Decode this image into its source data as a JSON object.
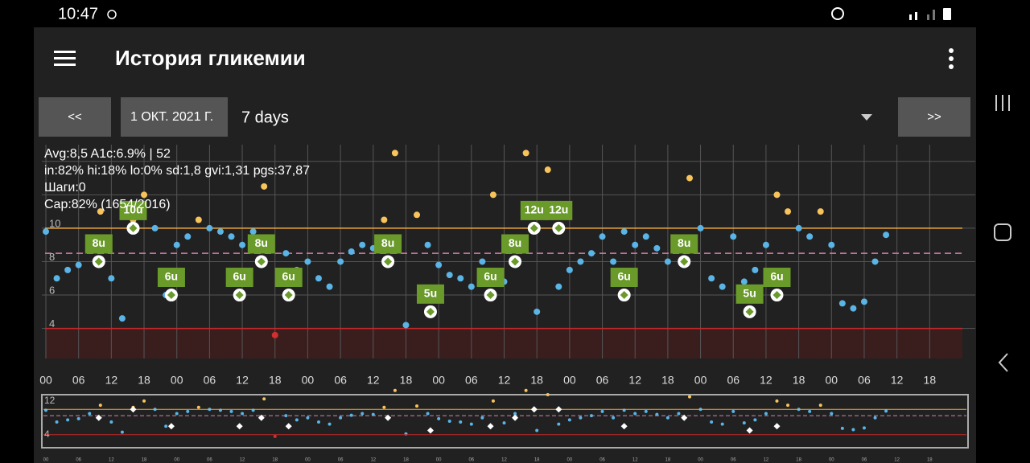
{
  "status": {
    "time": "10:47"
  },
  "app_bar": {
    "title": "История гликемии"
  },
  "controls": {
    "prev": "<<",
    "date": "1 ОКТ. 2021 Г.",
    "range": "7 days",
    "next": ">>"
  },
  "stats": [
    "Avg:8,5 A1c:6.9% | 52",
    "in:82% hi:18% lo:0% sd:1,8 gvi:1,31 pgs:37,87",
    "Шаги:0",
    "Cap:82% (1654/2016)"
  ],
  "chart_data": {
    "type": "scatter",
    "xlim": [
      0,
      168
    ],
    "ylim": [
      2.2,
      15
    ],
    "yticks": [
      4,
      6,
      8,
      10
    ],
    "grid_y": [
      4,
      6,
      8,
      10,
      12,
      14
    ],
    "xticks": [
      {
        "value": 0,
        "label": "00"
      },
      {
        "value": 6,
        "label": "06"
      },
      {
        "value": 12,
        "label": "12"
      },
      {
        "value": 18,
        "label": "18"
      },
      {
        "value": 24,
        "label": "00"
      },
      {
        "value": 30,
        "label": "06"
      },
      {
        "value": 36,
        "label": "12"
      },
      {
        "value": 42,
        "label": "18"
      },
      {
        "value": 48,
        "label": "00"
      },
      {
        "value": 54,
        "label": "06"
      },
      {
        "value": 60,
        "label": "12"
      },
      {
        "value": 66,
        "label": "18"
      },
      {
        "value": 72,
        "label": "00"
      },
      {
        "value": 78,
        "label": "06"
      },
      {
        "value": 84,
        "label": "12"
      },
      {
        "value": 90,
        "label": "18"
      },
      {
        "value": 96,
        "label": "00"
      },
      {
        "value": 102,
        "label": "06"
      },
      {
        "value": 108,
        "label": "12"
      },
      {
        "value": 114,
        "label": "18"
      },
      {
        "value": 120,
        "label": "00"
      },
      {
        "value": 126,
        "label": "06"
      },
      {
        "value": 132,
        "label": "12"
      },
      {
        "value": 138,
        "label": "18"
      },
      {
        "value": 144,
        "label": "00"
      },
      {
        "value": 150,
        "label": "06"
      },
      {
        "value": 156,
        "label": "12"
      },
      {
        "value": 162,
        "label": "18"
      }
    ],
    "high": 10,
    "low": 4,
    "target": 8.5,
    "colors": {
      "in_range": "#5ab4e6",
      "high": "#f7c35a",
      "low": "#d32f2f",
      "high_line": "#f2a93b",
      "low_line": "#c62828",
      "target_line": "#d77fae"
    },
    "x": [
      0,
      2,
      4,
      6,
      8,
      10,
      12,
      14,
      16,
      18,
      20,
      22,
      24,
      26,
      28,
      30,
      32,
      34,
      36,
      38,
      40,
      42,
      44,
      46,
      48,
      50,
      52,
      54,
      56,
      58,
      60,
      62,
      64,
      66,
      68,
      70,
      72,
      74,
      76,
      78,
      80,
      82,
      84,
      86,
      88,
      90,
      92,
      94,
      96,
      98,
      100,
      102,
      104,
      106,
      108,
      110,
      112,
      114,
      116,
      118,
      120,
      122,
      124,
      126,
      128,
      130,
      132,
      134,
      136,
      138,
      140,
      142,
      144,
      146,
      148,
      150,
      152,
      154
    ],
    "values": [
      9.8,
      7,
      7.5,
      7.8,
      9,
      11,
      7,
      4.6,
      10.5,
      12,
      10,
      6,
      9,
      9.5,
      10.5,
      10,
      9.8,
      9.5,
      9,
      9.8,
      12.5,
      3.6,
      8.5,
      7.5,
      8,
      7,
      6.5,
      8,
      8.6,
      9,
      8.8,
      10.5,
      14.5,
      4.2,
      10.8,
      9,
      7.8,
      7.2,
      7,
      6.5,
      8,
      12,
      6.8,
      9,
      14.5,
      5,
      13.5,
      6.5,
      7.5,
      8,
      8.5,
      9.5,
      8,
      9.8,
      9,
      9.5,
      8.8,
      8,
      9,
      13,
      10,
      7,
      6.5,
      9.5,
      6.8,
      7.5,
      9,
      12,
      11,
      10,
      9.5,
      11,
      9,
      5.5,
      5.2,
      5.6,
      8,
      9.6
    ],
    "treatments": [
      {
        "label": "8u",
        "x": 9.7,
        "y": 8
      },
      {
        "label": "10u",
        "x": 16,
        "y": 10
      },
      {
        "label": "6u",
        "x": 23,
        "y": 6
      },
      {
        "label": "6u",
        "x": 35.5,
        "y": 6
      },
      {
        "label": "8u",
        "x": 39.5,
        "y": 8
      },
      {
        "label": "6u",
        "x": 44.5,
        "y": 6
      },
      {
        "label": "8u",
        "x": 62.7,
        "y": 8
      },
      {
        "label": "5u",
        "x": 70.5,
        "y": 5
      },
      {
        "label": "6u",
        "x": 81.5,
        "y": 6
      },
      {
        "label": "8u",
        "x": 86,
        "y": 8
      },
      {
        "label": "12u",
        "x": 89.5,
        "y": 10
      },
      {
        "label": "12u",
        "x": 94,
        "y": 10
      },
      {
        "label": "6u",
        "x": 106,
        "y": 6
      },
      {
        "label": "8u",
        "x": 117,
        "y": 8
      },
      {
        "label": "5u",
        "x": 129,
        "y": 5
      },
      {
        "label": "6u",
        "x": 134,
        "y": 6
      }
    ],
    "mini": {
      "ylim": [
        1.1,
        13.3
      ],
      "yticks": [
        4,
        12
      ]
    }
  }
}
